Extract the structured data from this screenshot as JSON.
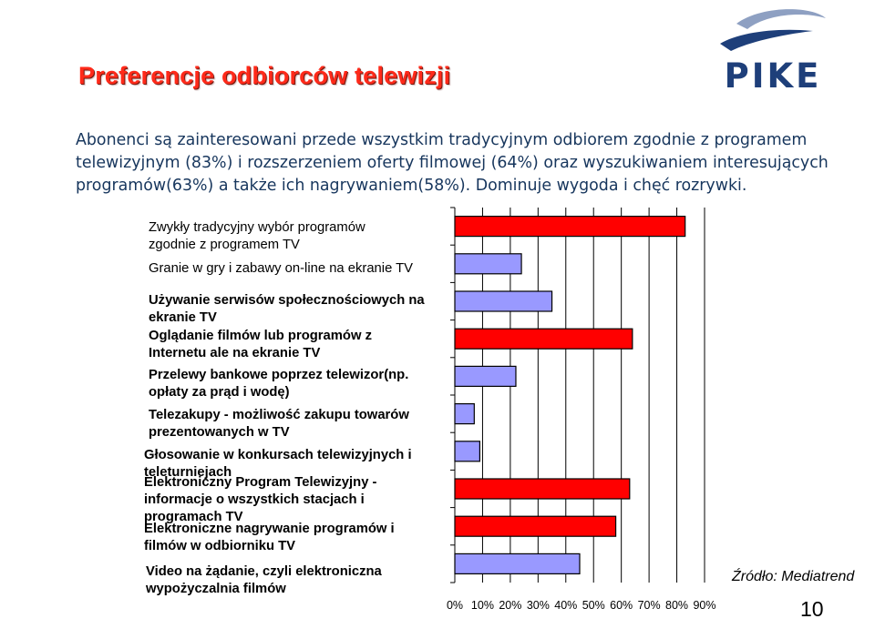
{
  "slide": {
    "title": "Preferencje odbiorców telewizji",
    "logo_text": "PIKE",
    "intro": "Abonenci są zainteresowani przede wszystkim tradycyjnym odbiorem zgodnie z programem telewizyjnym (83%) i  rozszerzeniem oferty filmowej (64%) oraz wyszukiwaniem interesujących programów(63%) a także ich nagrywaniem(58%). Dominuje  wygoda i chęć rozrywki.",
    "source": "Źródło: Mediatrend",
    "page_number": "10"
  },
  "colors": {
    "title": "#ff2a1a",
    "intro_text": "#17365d",
    "bar_highlight": "#ff0000",
    "bar_normal": "#9999ff",
    "bar_stroke": "#000000",
    "logo": "#1e3f7a",
    "logo_swoosh": "#8ea0c2"
  },
  "chart_data": {
    "type": "bar",
    "orientation": "horizontal",
    "xlim": [
      0,
      90
    ],
    "x_ticks": [
      "0%",
      "10%",
      "20%",
      "30%",
      "40%",
      "50%",
      "60%",
      "70%",
      "80%",
      "90%"
    ],
    "grid": true,
    "categories": [
      "Zwykły tradycyjny wybór programów zgodnie z programem TV",
      "Granie w gry i zabawy on-line na ekranie TV",
      "Używanie serwisów społecznościowych na ekranie TV",
      "Oglądanie filmów lub programów z Internetu ale na ekranie  TV",
      "Przelewy bankowe poprzez telewizor(np. opłaty za prąd i wodę)",
      "Telezakupy - możliwość zakupu towarów prezentowanych w TV",
      "Głosowanie w konkursach telewizyjnych i teleturniejach",
      "Elektroniczny Program Telewizyjny - informacje o wszystkich stacjach i programach TV",
      "Elektroniczne nagrywanie programów i filmów w odbiorniku TV",
      "Video na żądanie, czyli elektroniczna wypożyczalnia filmów"
    ],
    "values": [
      83,
      24,
      35,
      64,
      22,
      7,
      9,
      63,
      58,
      45
    ],
    "highlighted": [
      true,
      false,
      false,
      true,
      false,
      false,
      false,
      true,
      true,
      false
    ]
  }
}
